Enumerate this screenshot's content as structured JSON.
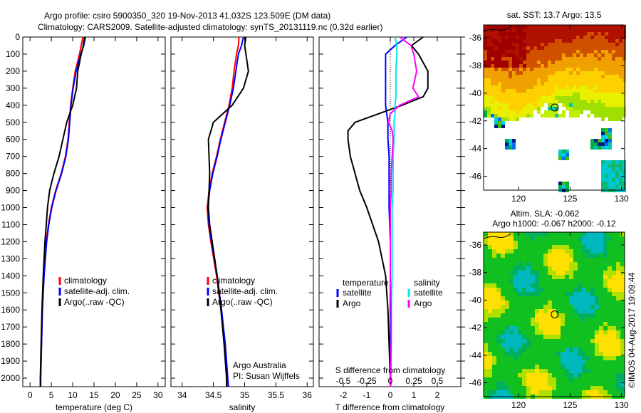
{
  "title_line1": "Argo profile: csiro 5900350_320 19-Nov-2013 41.032S 123.509E (DM data)",
  "title_line2": "Climatology: CARS2009. Satellite-adjusted climatology: synTS_20131119.nc (0.32d earlier)",
  "credit": "©IMOS 04-Aug-2017 19:09:44",
  "colors": {
    "climatology": "#ff0000",
    "satellite": "#0000ff",
    "argo": "#000000",
    "s_satellite": "#00e5ee",
    "s_argo": "#ff00ff"
  },
  "chart_data": [
    {
      "type": "line",
      "name": "temperature-profile",
      "xlabel": "temperature (deg C)",
      "xlim": [
        -1.7,
        31.7
      ],
      "ylim": [
        0,
        2050
      ],
      "xticks": [
        0,
        5,
        10,
        15,
        20,
        25,
        30
      ],
      "yticks": [
        0,
        100,
        200,
        300,
        400,
        500,
        600,
        700,
        800,
        900,
        1000,
        1100,
        1200,
        1300,
        1400,
        1500,
        1600,
        1700,
        1800,
        1900,
        2000
      ],
      "legend": [
        "climatology",
        "satellite-adj. clim.",
        "Argo(..raw -QC)"
      ],
      "depth": [
        0,
        50,
        100,
        200,
        300,
        400,
        500,
        600,
        700,
        800,
        900,
        1000,
        1100,
        1200,
        1400,
        1600,
        1800,
        2000,
        2050
      ],
      "series": [
        {
          "name": "climatology",
          "values": [
            12.4,
            12.0,
            11.6,
            10.6,
            10.0,
            9.5,
            9.2,
            8.9,
            8.3,
            7.3,
            6.0,
            5.0,
            4.3,
            3.8,
            3.2,
            2.9,
            2.7,
            2.5,
            2.5
          ]
        },
        {
          "name": "satellite-adj. clim.",
          "values": [
            13.0,
            12.6,
            11.9,
            10.8,
            10.1,
            9.6,
            9.3,
            9.0,
            8.4,
            7.4,
            6.1,
            5.1,
            4.4,
            3.9,
            3.3,
            2.9,
            2.7,
            2.5,
            2.5
          ]
        },
        {
          "name": "Argo(..raw -QC)",
          "values": [
            12.8,
            12.5,
            12.0,
            11.2,
            10.9,
            10.0,
            8.6,
            7.7,
            6.8,
            5.6,
            4.6,
            4.1,
            3.8,
            3.5,
            3.1,
            2.8,
            2.6,
            2.4,
            2.4
          ]
        }
      ]
    },
    {
      "type": "line",
      "name": "salinity-profile",
      "xlabel": "salinity",
      "xlim": [
        33.82,
        36.1
      ],
      "ylim": [
        0,
        2050
      ],
      "xticks": [
        34,
        34.5,
        35,
        35.5,
        36
      ],
      "legend": [
        "climatology",
        "satellite-adj. clim.",
        "Argo(..raw -QC)"
      ],
      "annotation": [
        "Argo Australia",
        "PI: Susan Wijffels"
      ],
      "depth": [
        0,
        50,
        100,
        200,
        300,
        400,
        500,
        600,
        700,
        800,
        900,
        1000,
        1100,
        1200,
        1400,
        1600,
        1800,
        2000,
        2050
      ],
      "series": [
        {
          "name": "climatology",
          "values": [
            34.91,
            34.9,
            34.87,
            34.83,
            34.8,
            34.75,
            34.68,
            34.61,
            34.55,
            34.48,
            34.43,
            34.4,
            34.42,
            34.46,
            34.55,
            34.62,
            34.68,
            34.72,
            34.73
          ]
        },
        {
          "name": "satellite-adj. clim.",
          "values": [
            34.98,
            34.95,
            34.9,
            34.86,
            34.82,
            34.76,
            34.69,
            34.62,
            34.56,
            34.49,
            34.44,
            34.41,
            34.43,
            34.47,
            34.56,
            34.63,
            34.69,
            34.73,
            34.74
          ]
        },
        {
          "name": "Argo(..raw -QC)",
          "values": [
            35.02,
            35.0,
            35.02,
            35.06,
            34.98,
            34.8,
            34.5,
            34.42,
            34.43,
            34.44,
            34.43,
            34.42,
            34.44,
            34.48,
            34.56,
            34.62,
            34.67,
            34.71,
            34.71
          ]
        }
      ]
    },
    {
      "type": "line",
      "name": "difference-profile",
      "xlabel": "T difference from climatology",
      "x2label": "S difference from climatology",
      "xlim": [
        -3.03,
        3.0
      ],
      "xticks": [
        -2,
        -1,
        0,
        1,
        2
      ],
      "x2ticks": [
        -0.5,
        -0.25,
        0,
        0.25,
        0.5
      ],
      "x2tick_labels": [
        "-0.5",
        "-0.25",
        "0",
        "0.25",
        "0.5"
      ],
      "ylim": [
        0,
        2050
      ],
      "legend_temperature_title": "temperature",
      "legend_salinity_title": "salinity",
      "legend_labels": [
        "satellite",
        "Argo",
        "satellite",
        "Argo"
      ],
      "depth": [
        0,
        50,
        100,
        200,
        300,
        350,
        400,
        450,
        500,
        550,
        600,
        700,
        800,
        900,
        1000,
        1200,
        1400,
        1600,
        1800,
        2000,
        2050
      ],
      "series": [
        {
          "name": "T satellite",
          "unit": "T",
          "values": [
            0.7,
            0.2,
            -0.2,
            -0.2,
            -0.2,
            -0.2,
            -0.2,
            -0.15,
            -0.1,
            -0.1,
            -0.1,
            -0.05,
            -0.05,
            -0.05,
            -0.05,
            0,
            0,
            0,
            0,
            0,
            0
          ]
        },
        {
          "name": "T Argo",
          "unit": "T",
          "values": [
            1.4,
            0.9,
            1.2,
            1.6,
            1.6,
            1.4,
            0.5,
            -0.5,
            -1.5,
            -1.8,
            -1.8,
            -1.7,
            -1.5,
            -1.3,
            -1.0,
            -0.5,
            -0.2,
            -0.1,
            -0.05,
            0,
            0
          ]
        },
        {
          "name": "S satellite",
          "unit": "S",
          "values": [
            0.05,
            0.07,
            0.07,
            0.06,
            0.06,
            0.06,
            0.05,
            0.05,
            0.04,
            0.04,
            0.04,
            0.03,
            0.03,
            0.03,
            0.02,
            0.02,
            0.02,
            0.01,
            0.01,
            0.01,
            0.01
          ]
        },
        {
          "name": "S Argo",
          "unit": "S",
          "values": [
            0.1,
            0.22,
            0.25,
            0.28,
            0.24,
            0.3,
            0.1,
            0.0,
            -0.02,
            0.02,
            0.03,
            0.02,
            0.01,
            0.01,
            0.0,
            0.0,
            0.0,
            0.01,
            0.01,
            0.0,
            0.0
          ]
        }
      ]
    },
    {
      "type": "heatmap",
      "name": "sst-map",
      "title": "sat. SST: 13.7  Argo: 13.5",
      "xlim": [
        116.6,
        130.3
      ],
      "ylim": [
        -47.0,
        -35.07
      ],
      "xticks": [
        120,
        125,
        130
      ],
      "yticks": [
        -36,
        -38,
        -40,
        -42,
        -44,
        -46
      ],
      "float_position": {
        "lon": 123.509,
        "lat": -41.032
      }
    },
    {
      "type": "heatmap",
      "name": "sla-map",
      "title": "Altim. SLA: -0.062",
      "subtitle": "Argo h1000: -0.067 h2000: -0.12",
      "xlim": [
        116.6,
        130.3
      ],
      "ylim": [
        -47.0,
        -35.07
      ],
      "xticks": [
        120,
        125,
        130
      ],
      "yticks": [
        -36,
        -38,
        -40,
        -42,
        -44,
        -46
      ],
      "float_position": {
        "lon": 123.509,
        "lat": -41.032
      }
    }
  ]
}
